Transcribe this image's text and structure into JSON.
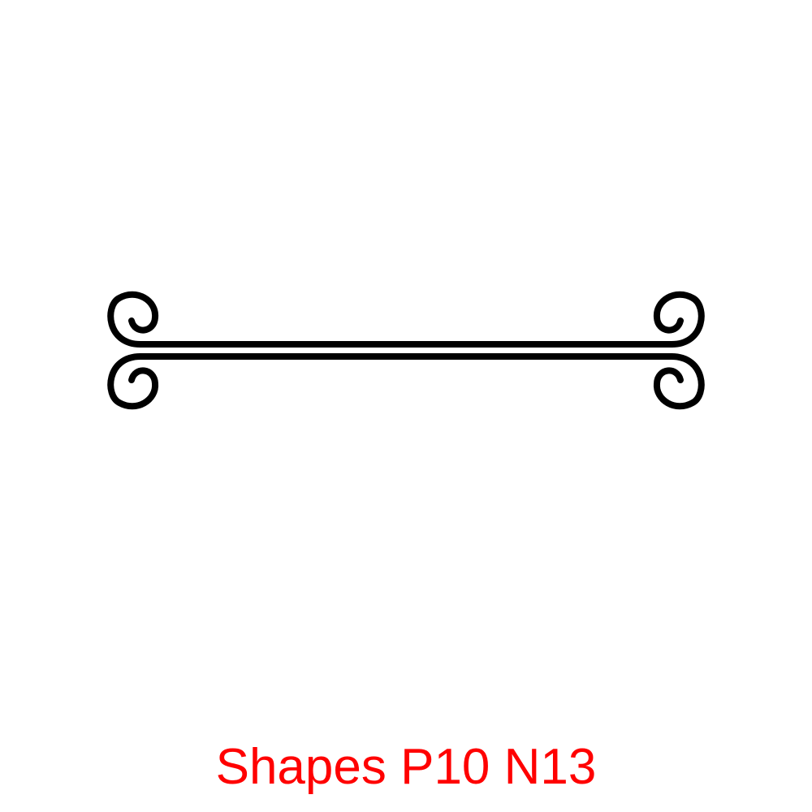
{
  "caption": {
    "text": "Shapes P10 N13",
    "color": "#ff0000"
  },
  "ornament": {
    "icon": "double-scroll-divider-icon",
    "stroke_color": "#000000"
  }
}
